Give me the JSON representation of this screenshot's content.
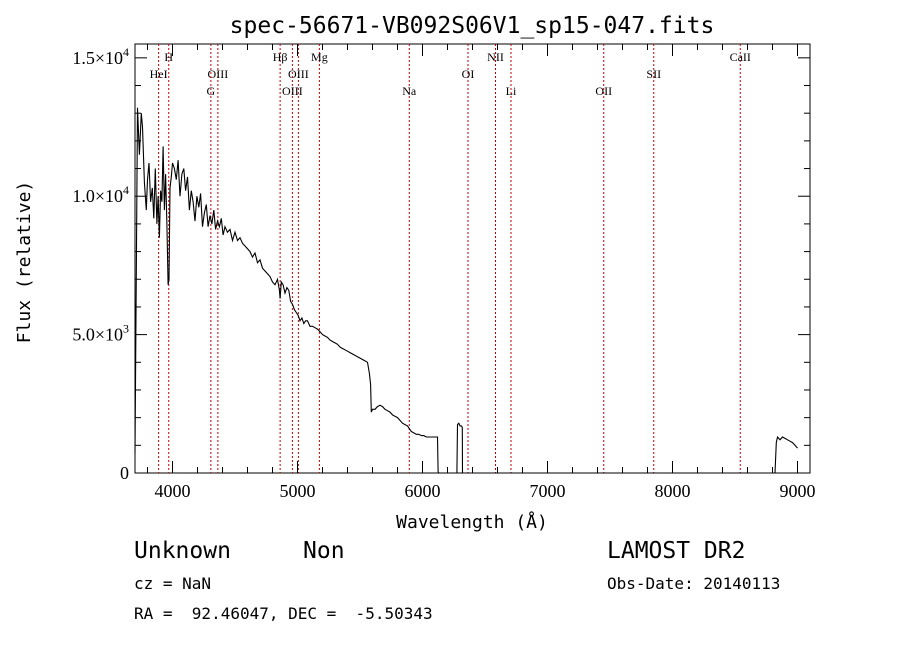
{
  "footer": {
    "object_class": "Unknown",
    "subclass": "Non",
    "survey": "LAMOST DR2",
    "redshift": "cz = NaN",
    "obs_date": "Obs-Date: 20140113",
    "coords": "RA =  92.46047, DEC =  -5.50343"
  },
  "colors": {
    "spectrum": "#000000",
    "line_markers": "#c00000",
    "axes": "#000000"
  },
  "chart_data": {
    "type": "line",
    "title": "spec-56671-VB092S06V1_sp15-047.fits",
    "xlabel": "Wavelength (Å)",
    "ylabel": "Flux (relative)",
    "xlim": [
      3700,
      9100
    ],
    "ylim": [
      0,
      15500
    ],
    "x_ticks": [
      4000,
      5000,
      6000,
      7000,
      8000,
      9000
    ],
    "x_tick_labels": [
      "4000",
      "5000",
      "6000",
      "7000",
      "8000",
      "9000"
    ],
    "y_ticks": [
      0,
      5000,
      10000,
      15000
    ],
    "y_tick_labels": [
      {
        "base": "0",
        "exp": ""
      },
      {
        "base": "5.0×10",
        "exp": "3"
      },
      {
        "base": "1.0×10",
        "exp": "4"
      },
      {
        "base": "1.5×10",
        "exp": "4"
      }
    ],
    "grid": false,
    "spectral_lines": [
      {
        "name": "HeI",
        "wavelength": 3889,
        "row": 2
      },
      {
        "name": "H",
        "wavelength": 3970,
        "row": 0
      },
      {
        "name": "OIII",
        "wavelength": 4363,
        "row": 2
      },
      {
        "name": "G",
        "wavelength": 4307,
        "row": 3
      },
      {
        "name": "Hβ",
        "wavelength": 4861,
        "row": 0
      },
      {
        "name": "OIII",
        "wavelength": 5007,
        "row": 2
      },
      {
        "name": "OIII",
        "wavelength": 4959,
        "row": 3
      },
      {
        "name": "Mg",
        "wavelength": 5175,
        "row": 0
      },
      {
        "name": "Na",
        "wavelength": 5894,
        "row": 3
      },
      {
        "name": "OI",
        "wavelength": 6364,
        "row": 2
      },
      {
        "name": "NII",
        "wavelength": 6584,
        "row": 0
      },
      {
        "name": "Li",
        "wavelength": 6708,
        "row": 3
      },
      {
        "name": "OII",
        "wavelength": 7450,
        "row": 3
      },
      {
        "name": "SII",
        "wavelength": 7850,
        "row": 2
      },
      {
        "name": "CaII",
        "wavelength": 8542,
        "row": 0
      }
    ],
    "series": [
      {
        "x": [
          3700,
          3720,
          3735,
          3750,
          3760,
          3775,
          3790,
          3800,
          3812,
          3825,
          3838,
          3850,
          3862,
          3875,
          3885,
          3895,
          3905,
          3915,
          3925,
          3935,
          3945,
          3955,
          3965,
          3972,
          3980,
          3990,
          4000,
          4015,
          4030,
          4045,
          4060,
          4075,
          4090,
          4105,
          4120,
          4135,
          4150,
          4165,
          4180,
          4195,
          4210,
          4225,
          4240,
          4255,
          4270,
          4285,
          4300,
          4315,
          4330,
          4345,
          4360,
          4375,
          4390,
          4405,
          4420,
          4440,
          4460,
          4480,
          4500,
          4520,
          4540,
          4560,
          4580,
          4600,
          4620,
          4640,
          4660,
          4680,
          4700,
          4720,
          4740,
          4760,
          4780,
          4800,
          4820,
          4840,
          4855,
          4861,
          4870,
          4885,
          4900,
          4915,
          4930,
          4945,
          4960,
          4975,
          4990,
          5005,
          5020,
          5035,
          5050,
          5065,
          5080,
          5100,
          5120,
          5140,
          5160,
          5180,
          5200,
          5220,
          5240,
          5260,
          5280,
          5300,
          5320,
          5340,
          5360,
          5380,
          5400,
          5420,
          5440,
          5460,
          5480,
          5500,
          5520,
          5540,
          5560,
          5575,
          5585,
          5590,
          5600,
          5620,
          5640,
          5660,
          5680,
          5700,
          5720,
          5740,
          5760,
          5780,
          5800,
          5820,
          5840,
          5860,
          5880,
          5894,
          5910,
          5930,
          5950,
          5970,
          5990,
          6010,
          6030,
          6050,
          6070,
          6090,
          6110,
          6120,
          6125,
          6130,
          6150,
          6170,
          6200,
          6230,
          6260,
          6275,
          6280,
          6290,
          6300,
          6310,
          6318,
          6320,
          6330,
          6400,
          6500,
          6600,
          6700,
          6800,
          6900,
          7000,
          7200,
          7400,
          7600,
          7800,
          8000,
          8200,
          8400,
          8600,
          8800,
          8820,
          8830,
          8840,
          8860,
          8880,
          8900,
          8920,
          8940,
          8960,
          8980,
          9000
        ],
        "y": [
          700,
          13200,
          11500,
          13000,
          12500,
          10500,
          9500,
          10600,
          11200,
          9800,
          10300,
          9200,
          11000,
          9000,
          10000,
          8500,
          10200,
          9800,
          11800,
          9500,
          10800,
          9000,
          6800,
          7000,
          10300,
          10700,
          11200,
          11000,
          10600,
          11300,
          10000,
          10800,
          11000,
          10200,
          10700,
          9500,
          10200,
          9800,
          9100,
          10000,
          9600,
          10100,
          8900,
          9400,
          9700,
          8900,
          9300,
          9000,
          9500,
          8800,
          9100,
          8900,
          9200,
          8600,
          8900,
          8700,
          8800,
          8400,
          8700,
          8400,
          8500,
          8300,
          8200,
          8100,
          8000,
          7800,
          7950,
          7600,
          7700,
          7400,
          7300,
          7200,
          7100,
          6900,
          6800,
          7000,
          6600,
          6300,
          6900,
          6800,
          6500,
          6700,
          6600,
          6200,
          6100,
          5900,
          5800,
          5700,
          5500,
          5600,
          5400,
          5500,
          5500,
          5300,
          5300,
          5250,
          5200,
          5100,
          5000,
          4950,
          4900,
          4800,
          4750,
          4700,
          4650,
          4550,
          4500,
          4450,
          4400,
          4350,
          4300,
          4250,
          4200,
          4150,
          4100,
          4050,
          4000,
          3600,
          3200,
          2200,
          2300,
          2300,
          2400,
          2450,
          2400,
          2300,
          2250,
          2200,
          2100,
          2050,
          2000,
          1900,
          1800,
          1750,
          1700,
          1600,
          1500,
          1450,
          1400,
          1400,
          1350,
          1350,
          1300,
          1300,
          1300,
          1300,
          1300,
          1300,
          50,
          0,
          0,
          0,
          0,
          0,
          0,
          0,
          1750,
          1800,
          1700,
          1700,
          1650,
          0,
          0,
          0,
          0,
          0,
          0,
          0,
          0,
          0,
          0,
          0,
          0,
          0,
          0,
          0,
          0,
          0,
          0,
          0,
          1100,
          1300,
          1200,
          1300,
          1250,
          1200,
          1150,
          1100,
          1000,
          900
        ]
      }
    ]
  }
}
